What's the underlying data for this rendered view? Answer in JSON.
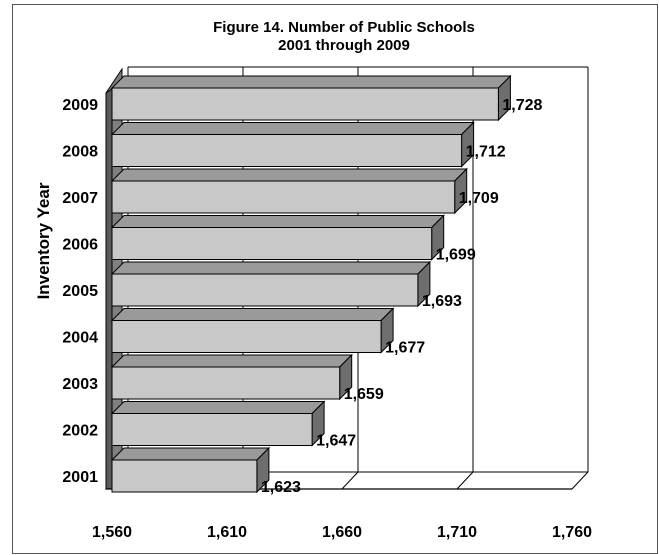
{
  "chart_data": {
    "type": "bar",
    "orientation": "horizontal",
    "style": "3d",
    "title": "Figure 14.  Number of Public Schools",
    "subtitle": "2001 through 2009",
    "xlabel": "",
    "ylabel": "Inventory Year",
    "categories": [
      "2001",
      "2002",
      "2003",
      "2004",
      "2005",
      "2006",
      "2007",
      "2008",
      "2009"
    ],
    "values": [
      1623,
      1647,
      1659,
      1677,
      1693,
      1699,
      1709,
      1712,
      1728
    ],
    "data_labels": [
      "1,623",
      "1,647",
      "1,659",
      "1,677",
      "1,693",
      "1,699",
      "1,709",
      "1,712",
      "1,728"
    ],
    "xlim": [
      1560,
      1760
    ],
    "xticks": [
      1560,
      1610,
      1660,
      1710,
      1760
    ],
    "xtick_labels": [
      "1,560",
      "1,610",
      "1,660",
      "1,710",
      "1,760"
    ],
    "grid": true,
    "legend": "none",
    "colors": {
      "bar_face": "#c8c8c8",
      "bar_top": "#9a9a9a",
      "bar_side": "#6e6e6e",
      "wall": "#808080"
    }
  }
}
